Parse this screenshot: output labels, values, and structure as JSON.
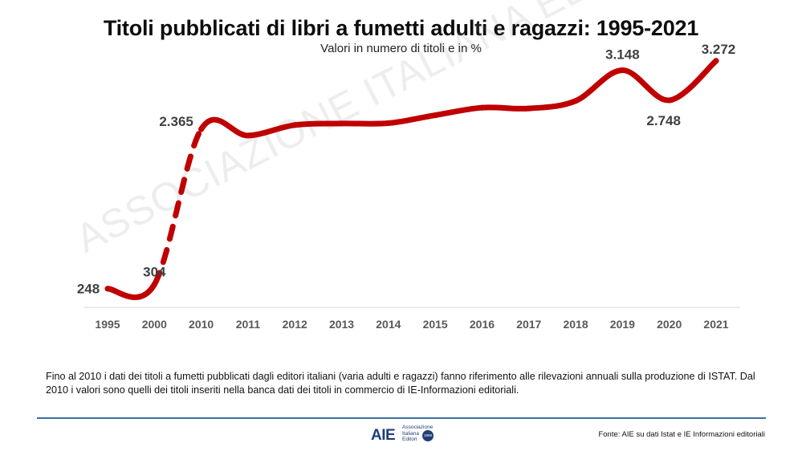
{
  "title": "Titoli pubblicati di libri a fumetti adulti e ragazzi: 1995-2021",
  "subtitle": "Valori in numero di titoli e in %",
  "watermark": "ASSOCIAZIONE ITALIANA EDITORI",
  "note": "Fino al 2010 i dati dei titoli a fumetti pubblicati dagli editori italiani (varia adulti e ragazzi) fanno riferimento alle rilevazioni annuali sulla produzione di ISTAT. Dal 2010 i valori sono quelli dei titoli inseriti nella banca dati dei titoli in commercio di IE-Informazioni editoriali.",
  "source": "Fonte: AIE su dati Istat e IE Informazioni editoriali",
  "logo": {
    "mark": "AIE",
    "lines": [
      "Associazione",
      "Italiana",
      "Editori"
    ],
    "seal": "1869"
  },
  "colors": {
    "line": "#c00000",
    "axis": "#d9d9d9",
    "label": "#595959",
    "rule": "#3d6fa5"
  },
  "chart_data": {
    "type": "line",
    "categories": [
      "1995",
      "2000",
      "2010",
      "2011",
      "2012",
      "2013",
      "2014",
      "2015",
      "2016",
      "2017",
      "2018",
      "2019",
      "2020",
      "2021"
    ],
    "values": [
      248,
      304,
      2365,
      2280,
      2420,
      2440,
      2445,
      2550,
      2650,
      2640,
      2740,
      3148,
      2748,
      3272
    ],
    "data_labels": [
      {
        "index": 0,
        "text": "248"
      },
      {
        "index": 1,
        "text": "304"
      },
      {
        "index": 2,
        "text": "2.365"
      },
      {
        "index": 11,
        "text": "3.148"
      },
      {
        "index": 12,
        "text": "2.748"
      },
      {
        "index": 13,
        "text": "3.272"
      }
    ],
    "dashed_segment": {
      "from": "2000",
      "to": "2010"
    },
    "ylim": [
      0,
      3600
    ],
    "grid": false,
    "legend": "none"
  }
}
